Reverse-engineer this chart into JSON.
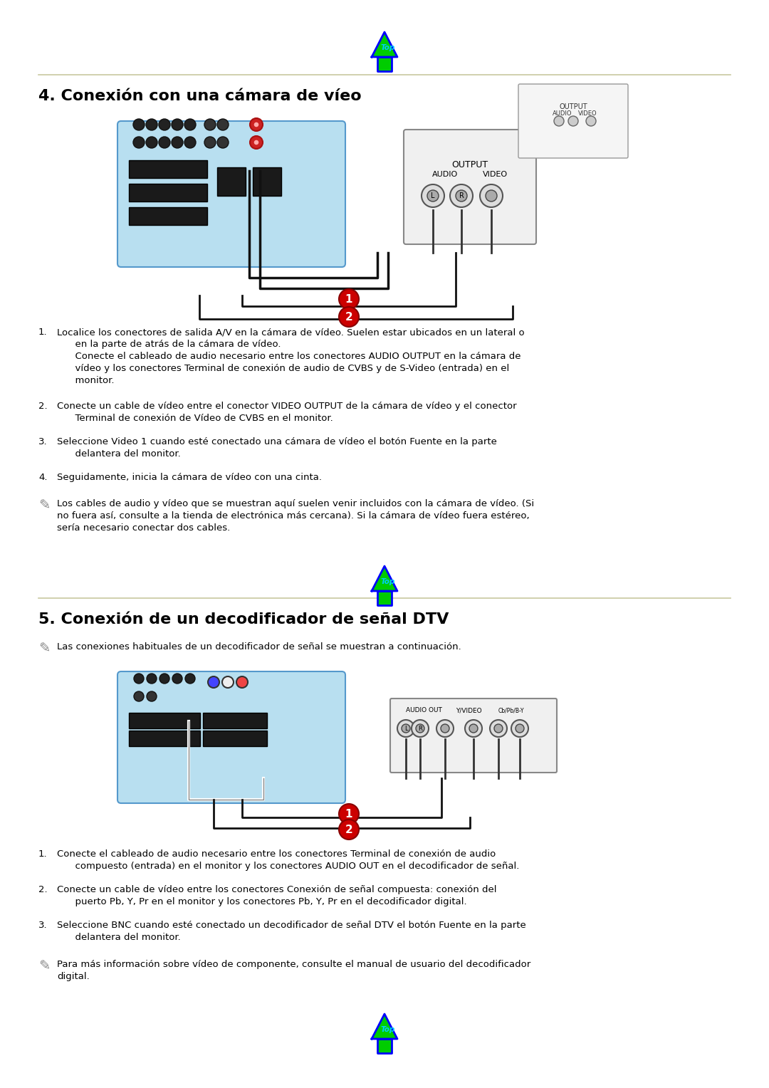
{
  "bg_color": "#ffffff",
  "page_width": 10.8,
  "page_height": 15.28,
  "top_arrow_icon_color": "#00cc00",
  "top_arrow_border_color": "#0000ff",
  "top_text_color": "#00ccff",
  "section4_title": "4. Conexión con una cámara de víeo",
  "section5_title": "5. Conexión de un decodificador de señal DTV",
  "text_color": "#000000",
  "bold_color": "#000000",
  "section4_items": [
    "Localice los conectores de salida A/V en la cámara de víeo. Suelen estar ubicados en un lateral o\nen la parte de atrás de la cámara de víeo.\nConecte el cableado de audio necesario entre los conectores AUDIO OUTPUT en la cámara de\nvíeo y los conectores Terminal de conexión de audio de CVBS y de S-Video (entrada) en el\nmonitor.",
    "Conecte un cable de víeo entre el conector VIDEO OUTPUT de la cámara de víeo y el conector\nTerminal de conexión de Vídeo de CVBS en el monitor.",
    "Seleccione Video 1 cuando esté conectado una cámara de víeo el botón Fuente en la parte\ndelantera del monitor.",
    "Seguidamente, inicia la cámara de víeo con una cinta."
  ],
  "section4_note": "Los cables de audio y vídeo que se muestran aquí suelen venir incluidos con la cámara de vídeo. (Si\nno fuera así, consulte a la tienda de electrónica más cercana). Si la cámara de vídeo fuera estéreo,\nsería necesario conectar dos cables.",
  "section5_note": "Las conexiones habituales de un decodificador de señal se muestran a continuación.",
  "section5_items": [
    "Conecte el cableado de audio necesario entre los conectores Terminal de conexión de audio\ncompuesto (entrada) en el monitor y los conectores AUDIO OUT en el decodificador de señal.",
    "Conecte un cable de vídeo entre los conectores Conexión de señal compuesta: conexión del\npuerto Pb, Y, Pr en el monitor y los conectores Pb, Y, Pr en el decodificador digital.",
    "Seleccione BNC cuando esté conectado un decodificador de señal DTV el botón Fuente en la parte\ndelantera del monitor."
  ],
  "section5_footer_note": "Para más información sobre vídeo de componente, consulte el manual de usuario del decodificador\ndigital.",
  "bold_phrases_4_1": [
    "Terminal de conexión de audio de CVBS y de S-Video (entrada)"
  ],
  "bold_phrases_4_2": [
    "Terminal de conexión de Vídeo de CVBS"
  ],
  "bold_phrases_4_3": [
    "Video 1"
  ],
  "bold_phrases_5_1": [
    "Terminal de conexión de audio",
    "compuesto (entrada)"
  ],
  "bold_phrases_5_2": [
    "Conexión de señal compuesta: conexión del",
    "puerto Pb, Y, Pr"
  ],
  "bold_phrases_5_3": [
    "BNC"
  ],
  "line_color": "#c8c8a0",
  "monitor_bg": "#add8e6",
  "label_red_1": "#cc0000",
  "label_red_2": "#cc0000"
}
